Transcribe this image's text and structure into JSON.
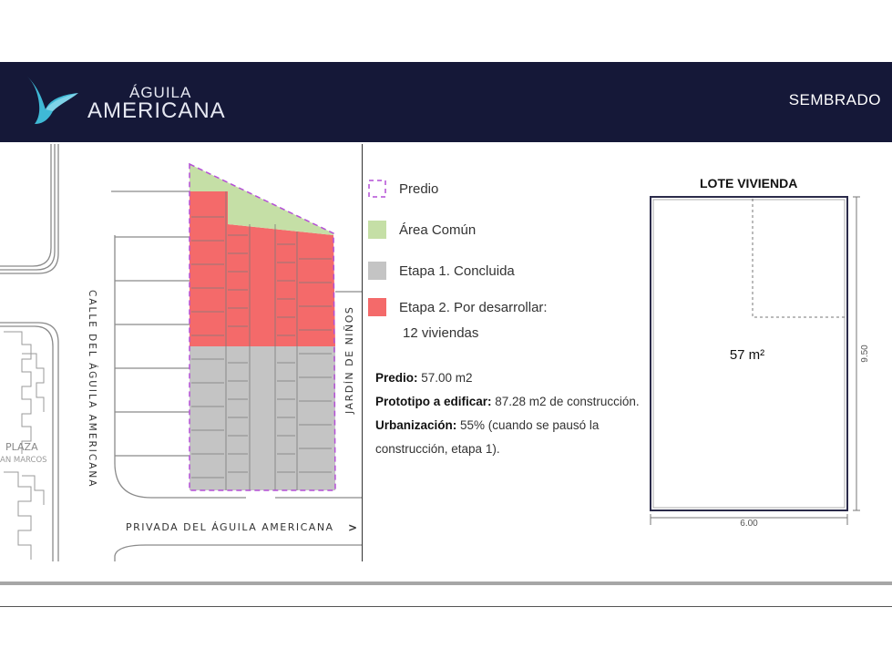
{
  "header": {
    "logo_top": "ÁGUILA",
    "logo_main": "AMERICANA",
    "section_title": "SEMBRADO"
  },
  "colors": {
    "header_bg": "#151838",
    "area_comun": "#c5dfa6",
    "etapa1": "#c4c4c4",
    "etapa2": "#f46a6a",
    "predio_border": "#b44fd6"
  },
  "map": {
    "street_left": "CALLE DEL ÁGUILA AMERICANA",
    "street_bottom": "PRIVADA DEL ÁGUILA AMERICANA",
    "street_right": "JARDÍN DE NIÑOS",
    "plaza_label": "PLAZA",
    "plaza_sub": "AN MARCOS",
    "arrow": ">"
  },
  "legend": {
    "predio": "Predio",
    "area_comun": "Área Común",
    "etapa1": "Etapa 1. Concluida",
    "etapa2_line1": "Etapa 2. Por desarrollar:",
    "etapa2_line2": "12 viviendas"
  },
  "info": {
    "predio_label": "Predio:",
    "predio_value": " 57.00 m2",
    "prototipo_label": "Prototipo a edificar:",
    "prototipo_value": "  87.28 m2 de construcción.",
    "urbanizacion_label": "Urbanización:",
    "urbanizacion_value": " 55% (cuando se pausó la construcción, etapa 1)."
  },
  "lote": {
    "title": "LOTE VIVIENDA",
    "area": "57 m²",
    "height_dim": "9.50",
    "width_dim": "6.00"
  }
}
